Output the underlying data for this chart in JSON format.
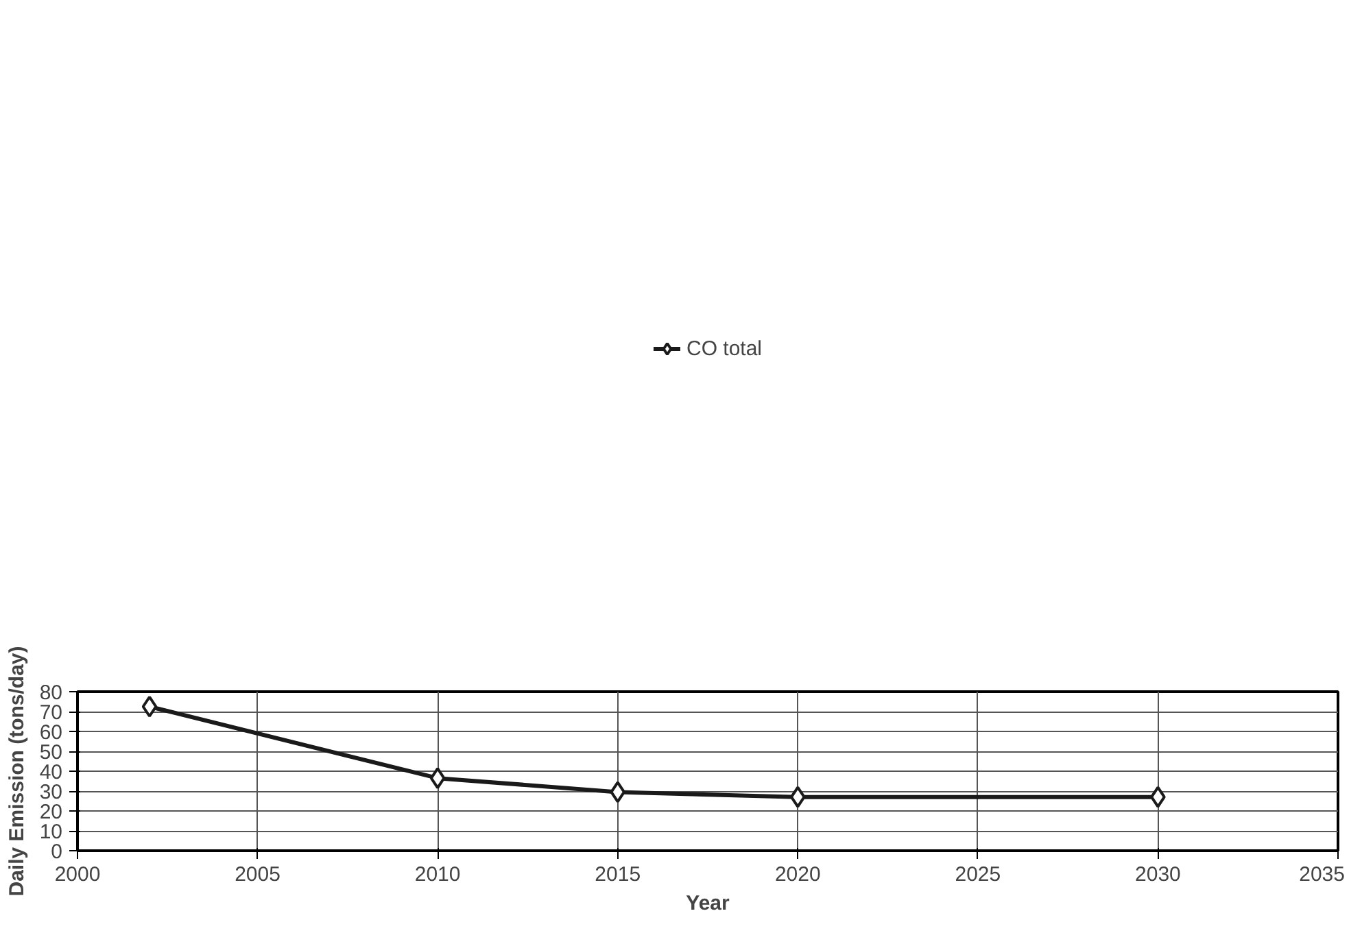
{
  "chart_data": {
    "type": "line",
    "xlabel": "Year",
    "ylabel": "Daily Emission (tons/day)",
    "x": [
      2002,
      2010,
      2015,
      2020,
      2030
    ],
    "series": [
      {
        "name": "CO total",
        "color": "#1a1a1a",
        "values": [
          72.5,
          36.5,
          29.5,
          27,
          27
        ]
      }
    ],
    "xlim": [
      2000,
      2035
    ],
    "xticks": [
      2000,
      2005,
      2010,
      2015,
      2020,
      2025,
      2030,
      2035
    ],
    "ylim": [
      0,
      80
    ],
    "yticks": [
      0,
      10,
      20,
      30,
      40,
      50,
      60,
      70,
      80
    ],
    "grid": true,
    "legend": "top",
    "marker": "diamond",
    "line_style": "solid"
  }
}
